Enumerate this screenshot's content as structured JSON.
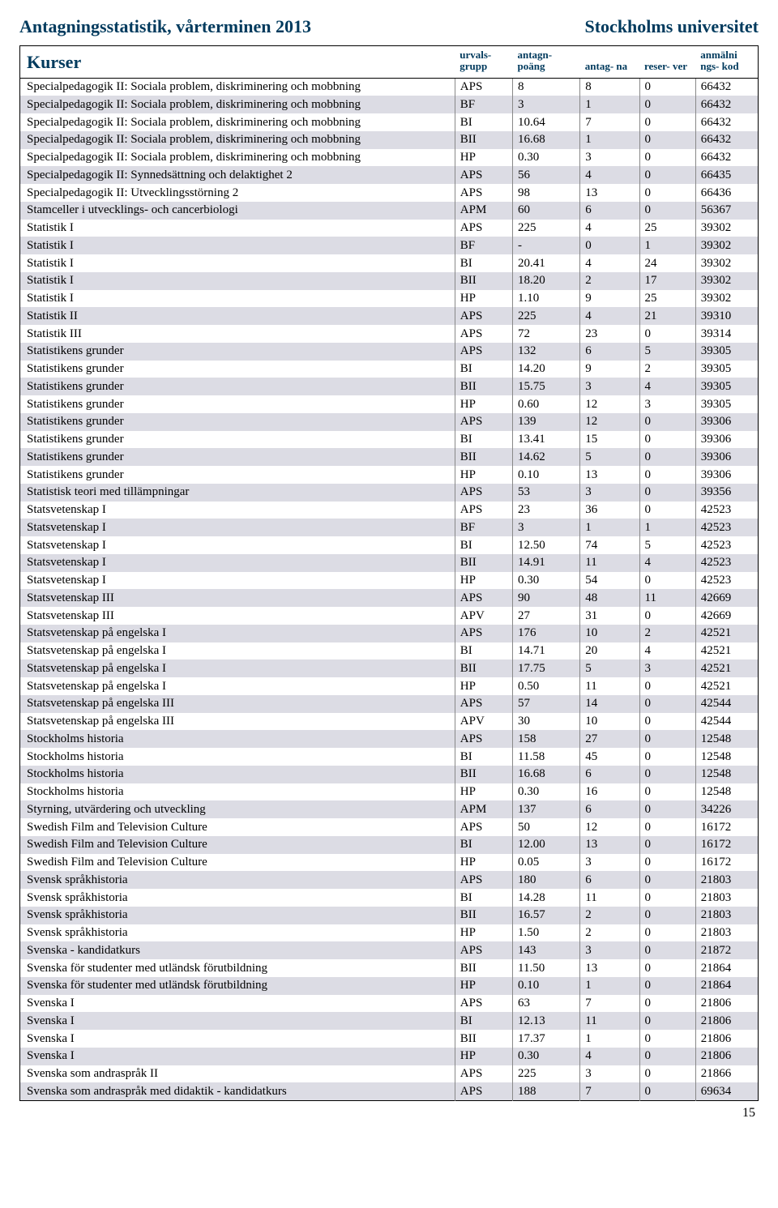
{
  "header": {
    "left": "Antagningsstatistik, vårterminen 2013",
    "right": "Stockholms universitet"
  },
  "table": {
    "headers": {
      "kurser": "Kurser",
      "urvalsgrupp": "urvals-\ngrupp",
      "antagnpoang": "antagn-\npoäng",
      "antagna": "antag-\nna",
      "reserver": "reser-\nver",
      "anmalningskod": "anmälni\nngs- kod"
    },
    "rows": [
      {
        "name": "Specialpedagogik II: Sociala problem, diskriminering och mobbning",
        "grupp": "APS",
        "poang": "8",
        "antagna": "8",
        "reserver": "0",
        "kod": "66432"
      },
      {
        "name": "Specialpedagogik II: Sociala problem, diskriminering och mobbning",
        "grupp": "BF",
        "poang": "3",
        "antagna": "1",
        "reserver": "0",
        "kod": "66432"
      },
      {
        "name": "Specialpedagogik II: Sociala problem, diskriminering och mobbning",
        "grupp": "BI",
        "poang": "10.64",
        "antagna": "7",
        "reserver": "0",
        "kod": "66432"
      },
      {
        "name": "Specialpedagogik II: Sociala problem, diskriminering och mobbning",
        "grupp": "BII",
        "poang": "16.68",
        "antagna": "1",
        "reserver": "0",
        "kod": "66432"
      },
      {
        "name": "Specialpedagogik II: Sociala problem, diskriminering och mobbning",
        "grupp": "HP",
        "poang": "0.30",
        "antagna": "3",
        "reserver": "0",
        "kod": "66432"
      },
      {
        "name": "Specialpedagogik II: Synnedsättning och delaktighet 2",
        "grupp": "APS",
        "poang": "56",
        "antagna": "4",
        "reserver": "0",
        "kod": "66435"
      },
      {
        "name": "Specialpedagogik II: Utvecklingsstörning 2",
        "grupp": "APS",
        "poang": "98",
        "antagna": "13",
        "reserver": "0",
        "kod": "66436"
      },
      {
        "name": "Stamceller i utvecklings- och cancerbiologi",
        "grupp": "APM",
        "poang": "60",
        "antagna": "6",
        "reserver": "0",
        "kod": "56367"
      },
      {
        "name": "Statistik I",
        "grupp": "APS",
        "poang": "225",
        "antagna": "4",
        "reserver": "25",
        "kod": "39302"
      },
      {
        "name": "Statistik I",
        "grupp": "BF",
        "poang": "-",
        "antagna": "0",
        "reserver": "1",
        "kod": "39302"
      },
      {
        "name": "Statistik I",
        "grupp": "BI",
        "poang": "20.41",
        "antagna": "4",
        "reserver": "24",
        "kod": "39302"
      },
      {
        "name": "Statistik I",
        "grupp": "BII",
        "poang": "18.20",
        "antagna": "2",
        "reserver": "17",
        "kod": "39302"
      },
      {
        "name": "Statistik I",
        "grupp": "HP",
        "poang": "1.10",
        "antagna": "9",
        "reserver": "25",
        "kod": "39302"
      },
      {
        "name": "Statistik II",
        "grupp": "APS",
        "poang": "225",
        "antagna": "4",
        "reserver": "21",
        "kod": "39310"
      },
      {
        "name": "Statistik III",
        "grupp": "APS",
        "poang": "72",
        "antagna": "23",
        "reserver": "0",
        "kod": "39314"
      },
      {
        "name": "Statistikens grunder",
        "grupp": "APS",
        "poang": "132",
        "antagna": "6",
        "reserver": "5",
        "kod": "39305"
      },
      {
        "name": "Statistikens grunder",
        "grupp": "BI",
        "poang": "14.20",
        "antagna": "9",
        "reserver": "2",
        "kod": "39305"
      },
      {
        "name": "Statistikens grunder",
        "grupp": "BII",
        "poang": "15.75",
        "antagna": "3",
        "reserver": "4",
        "kod": "39305"
      },
      {
        "name": "Statistikens grunder",
        "grupp": "HP",
        "poang": "0.60",
        "antagna": "12",
        "reserver": "3",
        "kod": "39305"
      },
      {
        "name": "Statistikens grunder",
        "grupp": "APS",
        "poang": "139",
        "antagna": "12",
        "reserver": "0",
        "kod": "39306"
      },
      {
        "name": "Statistikens grunder",
        "grupp": "BI",
        "poang": "13.41",
        "antagna": "15",
        "reserver": "0",
        "kod": "39306"
      },
      {
        "name": "Statistikens grunder",
        "grupp": "BII",
        "poang": "14.62",
        "antagna": "5",
        "reserver": "0",
        "kod": "39306"
      },
      {
        "name": "Statistikens grunder",
        "grupp": "HP",
        "poang": "0.10",
        "antagna": "13",
        "reserver": "0",
        "kod": "39306"
      },
      {
        "name": "Statistisk teori med tillämpningar",
        "grupp": "APS",
        "poang": "53",
        "antagna": "3",
        "reserver": "0",
        "kod": "39356"
      },
      {
        "name": "Statsvetenskap I",
        "grupp": "APS",
        "poang": "23",
        "antagna": "36",
        "reserver": "0",
        "kod": "42523"
      },
      {
        "name": "Statsvetenskap I",
        "grupp": "BF",
        "poang": "3",
        "antagna": "1",
        "reserver": "1",
        "kod": "42523"
      },
      {
        "name": "Statsvetenskap I",
        "grupp": "BI",
        "poang": "12.50",
        "antagna": "74",
        "reserver": "5",
        "kod": "42523"
      },
      {
        "name": "Statsvetenskap I",
        "grupp": "BII",
        "poang": "14.91",
        "antagna": "11",
        "reserver": "4",
        "kod": "42523"
      },
      {
        "name": "Statsvetenskap I",
        "grupp": "HP",
        "poang": "0.30",
        "antagna": "54",
        "reserver": "0",
        "kod": "42523"
      },
      {
        "name": "Statsvetenskap III",
        "grupp": "APS",
        "poang": "90",
        "antagna": "48",
        "reserver": "11",
        "kod": "42669"
      },
      {
        "name": "Statsvetenskap III",
        "grupp": "APV",
        "poang": "27",
        "antagna": "31",
        "reserver": "0",
        "kod": "42669"
      },
      {
        "name": "Statsvetenskap på engelska I",
        "grupp": "APS",
        "poang": "176",
        "antagna": "10",
        "reserver": "2",
        "kod": "42521"
      },
      {
        "name": "Statsvetenskap på engelska I",
        "grupp": "BI",
        "poang": "14.71",
        "antagna": "20",
        "reserver": "4",
        "kod": "42521"
      },
      {
        "name": "Statsvetenskap på engelska I",
        "grupp": "BII",
        "poang": "17.75",
        "antagna": "5",
        "reserver": "3",
        "kod": "42521"
      },
      {
        "name": "Statsvetenskap på engelska I",
        "grupp": "HP",
        "poang": "0.50",
        "antagna": "11",
        "reserver": "0",
        "kod": "42521"
      },
      {
        "name": "Statsvetenskap på engelska III",
        "grupp": "APS",
        "poang": "57",
        "antagna": "14",
        "reserver": "0",
        "kod": "42544"
      },
      {
        "name": "Statsvetenskap på engelska III",
        "grupp": "APV",
        "poang": "30",
        "antagna": "10",
        "reserver": "0",
        "kod": "42544"
      },
      {
        "name": "Stockholms historia",
        "grupp": "APS",
        "poang": "158",
        "antagna": "27",
        "reserver": "0",
        "kod": "12548"
      },
      {
        "name": "Stockholms historia",
        "grupp": "BI",
        "poang": "11.58",
        "antagna": "45",
        "reserver": "0",
        "kod": "12548"
      },
      {
        "name": "Stockholms historia",
        "grupp": "BII",
        "poang": "16.68",
        "antagna": "6",
        "reserver": "0",
        "kod": "12548"
      },
      {
        "name": "Stockholms historia",
        "grupp": "HP",
        "poang": "0.30",
        "antagna": "16",
        "reserver": "0",
        "kod": "12548"
      },
      {
        "name": "Styrning, utvärdering och utveckling",
        "grupp": "APM",
        "poang": "137",
        "antagna": "6",
        "reserver": "0",
        "kod": "34226"
      },
      {
        "name": "Swedish Film and Television Culture",
        "grupp": "APS",
        "poang": "50",
        "antagna": "12",
        "reserver": "0",
        "kod": "16172"
      },
      {
        "name": "Swedish Film and Television Culture",
        "grupp": "BI",
        "poang": "12.00",
        "antagna": "13",
        "reserver": "0",
        "kod": "16172"
      },
      {
        "name": "Swedish Film and Television Culture",
        "grupp": "HP",
        "poang": "0.05",
        "antagna": "3",
        "reserver": "0",
        "kod": "16172"
      },
      {
        "name": "Svensk språkhistoria",
        "grupp": "APS",
        "poang": "180",
        "antagna": "6",
        "reserver": "0",
        "kod": "21803"
      },
      {
        "name": "Svensk språkhistoria",
        "grupp": "BI",
        "poang": "14.28",
        "antagna": "11",
        "reserver": "0",
        "kod": "21803"
      },
      {
        "name": "Svensk språkhistoria",
        "grupp": "BII",
        "poang": "16.57",
        "antagna": "2",
        "reserver": "0",
        "kod": "21803"
      },
      {
        "name": "Svensk språkhistoria",
        "grupp": "HP",
        "poang": "1.50",
        "antagna": "2",
        "reserver": "0",
        "kod": "21803"
      },
      {
        "name": "Svenska - kandidatkurs",
        "grupp": "APS",
        "poang": "143",
        "antagna": "3",
        "reserver": "0",
        "kod": "21872"
      },
      {
        "name": "Svenska för studenter med utländsk förutbildning",
        "grupp": "BII",
        "poang": "11.50",
        "antagna": "13",
        "reserver": "0",
        "kod": "21864"
      },
      {
        "name": "Svenska för studenter med utländsk förutbildning",
        "grupp": "HP",
        "poang": "0.10",
        "antagna": "1",
        "reserver": "0",
        "kod": "21864"
      },
      {
        "name": "Svenska I",
        "grupp": "APS",
        "poang": "63",
        "antagna": "7",
        "reserver": "0",
        "kod": "21806"
      },
      {
        "name": "Svenska I",
        "grupp": "BI",
        "poang": "12.13",
        "antagna": "11",
        "reserver": "0",
        "kod": "21806"
      },
      {
        "name": "Svenska I",
        "grupp": "BII",
        "poang": "17.37",
        "antagna": "1",
        "reserver": "0",
        "kod": "21806"
      },
      {
        "name": "Svenska I",
        "grupp": "HP",
        "poang": "0.30",
        "antagna": "4",
        "reserver": "0",
        "kod": "21806"
      },
      {
        "name": "Svenska som andraspråk II",
        "grupp": "APS",
        "poang": "225",
        "antagna": "3",
        "reserver": "0",
        "kod": "21866"
      },
      {
        "name": "Svenska som andraspråk med didaktik - kandidatkurs",
        "grupp": "APS",
        "poang": "188",
        "antagna": "7",
        "reserver": "0",
        "kod": "69634"
      }
    ]
  },
  "styling": {
    "header_color": "#003a5d",
    "shaded_row_bg": "#dcdce4",
    "border_color": "#000000",
    "cell_border_color": "#888888",
    "body_font": "Times New Roman",
    "header_font": "Georgia"
  },
  "page_number": "15"
}
